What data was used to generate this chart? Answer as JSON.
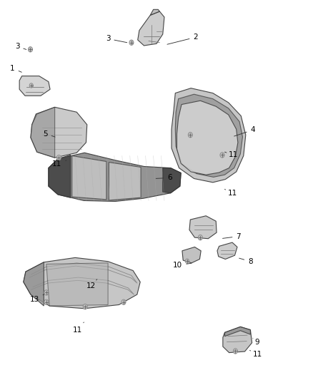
{
  "background_color": "#ffffff",
  "fig_width": 4.38,
  "fig_height": 5.33,
  "dpi": 100,
  "line_color": "#333333",
  "text_color": "#000000",
  "font_size": 7.5
}
